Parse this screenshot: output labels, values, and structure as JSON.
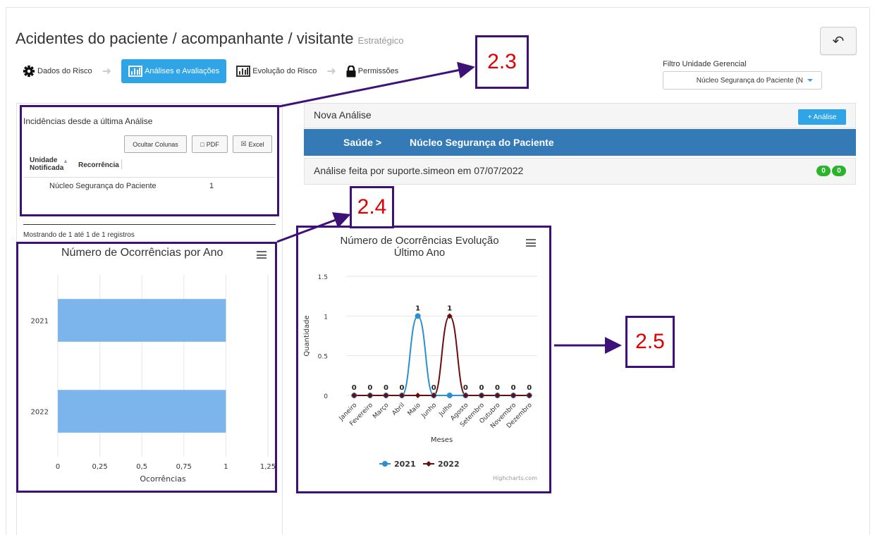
{
  "header": {
    "title": "Acidentes do paciente / acompanhante / visitante",
    "subtitle": "Estratégico",
    "back_icon": "reply-arrow-icon"
  },
  "steps": [
    {
      "label": "Dados do Risco",
      "icon": "gear-icon",
      "active": false
    },
    {
      "label": "Análises e Avaliações",
      "icon": "bar-chart-icon",
      "active": true
    },
    {
      "label": "Evolução do Risco",
      "icon": "bar-chart-icon",
      "active": false
    },
    {
      "label": "Permissões",
      "icon": "lock-icon",
      "active": false
    }
  ],
  "filter": {
    "label": "Filtro Unidade Gerencial",
    "value": "Núcleo Segurança do Paciente (N"
  },
  "incidences": {
    "title": "Incidências desde a última Análise",
    "buttons": {
      "hide_columns": "Ocultar Colunas",
      "pdf": "PDF",
      "excel": "Excel"
    },
    "columns": [
      "Unidade Notificada",
      "Recorrência"
    ],
    "rows": [
      [
        "Núcleo Segurança do Paciente",
        "1"
      ]
    ],
    "showing": "Mostrando de 1 até 1 de 1 registros"
  },
  "analysis": {
    "new_title": "Nova Análise",
    "new_button": "+ Análise",
    "breadcrumb_a": "Saúde >",
    "breadcrumb_b": "Núcleo Segurança do Paciente",
    "done_text": "Análise feita por suporte.simeon em 07/07/2022",
    "badge_a": "0",
    "badge_b": "0"
  },
  "callouts": {
    "c23": "2.3",
    "c24": "2.4",
    "c25": "2.5"
  },
  "colors": {
    "accent": "#2fa4e7",
    "primary": "#337ab7",
    "highlight": "#3d1178",
    "callout_text": "#e00000",
    "bar": "#7cb5ec",
    "series_2021": "#2b8fd0",
    "series_2022": "#6b0d0d",
    "badge": "#2cb32c"
  },
  "chart_data": [
    {
      "type": "bar",
      "orientation": "horizontal",
      "title": "Número de Ocorrências por Ano",
      "categories": [
        "2021",
        "2022"
      ],
      "values": [
        1,
        1
      ],
      "xlabel": "Ocorrências",
      "xticks": [
        "0",
        "0,25",
        "0,5",
        "0,75",
        "1",
        "1,25"
      ],
      "xlim": [
        0,
        1.25
      ],
      "grid": true,
      "menu_icon": "hamburger-menu-icon"
    },
    {
      "type": "line",
      "title": "Número de Ocorrências Evolução Último Ano",
      "categories": [
        "Janeiro",
        "Fevereiro",
        "Março",
        "Abril",
        "Maio",
        "Junho",
        "Julho",
        "Agosto",
        "Setembro",
        "Outubro",
        "Novembro",
        "Dezembro"
      ],
      "series": [
        {
          "name": "2021",
          "values": [
            0,
            0,
            0,
            0,
            1,
            0,
            0,
            0,
            0,
            0,
            0,
            0
          ]
        },
        {
          "name": "2022",
          "values": [
            0,
            0,
            0,
            0,
            0,
            0,
            1,
            0,
            0,
            0,
            0,
            0
          ]
        }
      ],
      "xlabel": "Meses",
      "ylabel": "Quantidade",
      "yticks": [
        "0",
        "0.5",
        "1",
        "1.5"
      ],
      "ylim": [
        0,
        1.5
      ],
      "legend": "bottom",
      "credits": "Highcharts.com",
      "menu_icon": "hamburger-menu-icon"
    }
  ]
}
